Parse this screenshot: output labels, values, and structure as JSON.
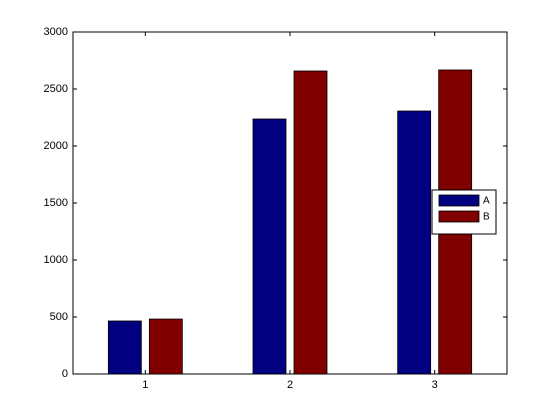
{
  "chart_data": {
    "type": "bar",
    "categories": [
      "1",
      "2",
      "3"
    ],
    "series": [
      {
        "name": "A",
        "color": "#000080",
        "values": [
          465,
          2237,
          2307
        ]
      },
      {
        "name": "B",
        "color": "#800000",
        "values": [
          482,
          2658,
          2667
        ]
      }
    ],
    "ylim": [
      0,
      3000
    ],
    "yticks": [
      0,
      500,
      1000,
      1500,
      2000,
      2500,
      3000
    ],
    "grid": false,
    "legend": "right"
  }
}
